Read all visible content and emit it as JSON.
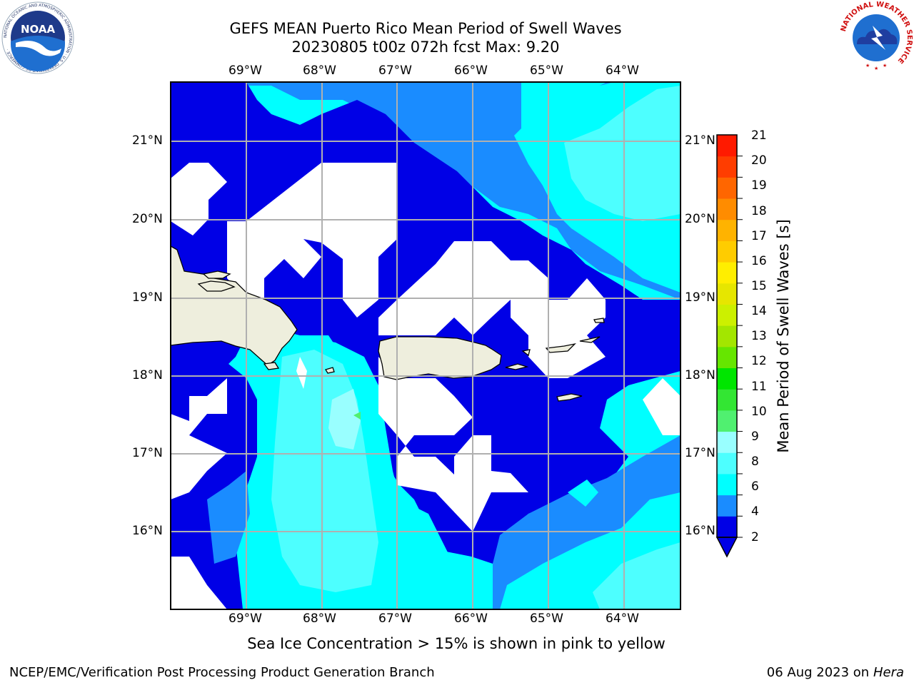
{
  "title": {
    "line1": "GEFS MEAN Puerto Rico Mean Period of Swell Waves",
    "line2": "20230805 t00z 072h fcst   Max: 9.20"
  },
  "map": {
    "lon_labels": [
      "69°W",
      "68°W",
      "67°W",
      "66°W",
      "65°W",
      "64°W"
    ],
    "lat_labels": [
      "21°N",
      "20°N",
      "19°N",
      "18°N",
      "17°N",
      "16°N"
    ],
    "colors": {
      "band_2_4": "#0000e6",
      "band_4_6": "#1a8cff",
      "band_6_8": "#00ffff",
      "band_8_10": "#4dffff",
      "band_10_12": "#99ffff",
      "land": "#eeeedd",
      "grid": "#b0b0b0"
    }
  },
  "colorbar": {
    "label": "Mean Period of Swell Waves [s]",
    "ticks": [
      "21",
      "20",
      "19",
      "18",
      "17",
      "16",
      "15",
      "14",
      "13",
      "12",
      "11",
      "10",
      "9",
      "8",
      "6",
      "4",
      "2"
    ],
    "colors": [
      "#0000e6",
      "#1a8cff",
      "#00ffff",
      "#4dffff",
      "#99ffff",
      "#50f070",
      "#33e633",
      "#00e600",
      "#66e600",
      "#a3e600",
      "#ccf000",
      "#e6e600",
      "#ffee00",
      "#ffcc00",
      "#ffb300",
      "#ff8c00",
      "#ff6600",
      "#ff3d00",
      "#ff1a00"
    ]
  },
  "ice_note": "Sea Ice Concentration > 15% is shown in pink to yellow",
  "footer": {
    "left": "NCEP/EMC/Verification Post Processing Product Generation Branch",
    "date": "06 Aug 2023 on",
    "machine": "Hera"
  },
  "logos": {
    "noaa_text": "NOAA",
    "noaa_ring_text": "NATIONAL OCEANIC AND ATMOSPHERIC ADMINISTRATION · U.S. DEPARTMENT OF COMMERCE ·",
    "nws_ring_text": "NATIONAL WEATHER SERVICE"
  }
}
